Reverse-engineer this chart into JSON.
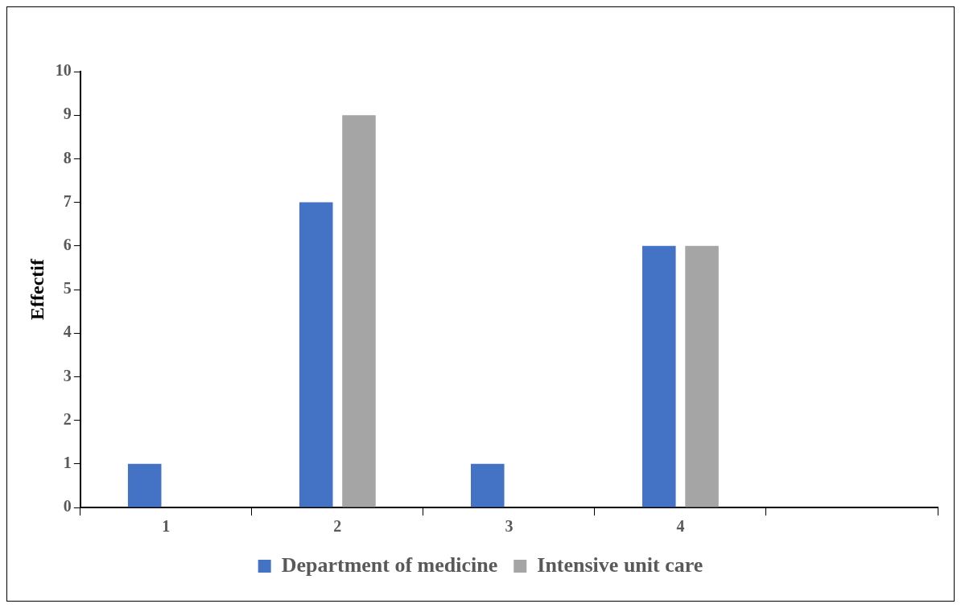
{
  "chart_data": {
    "type": "bar",
    "ylabel": "Effectif",
    "categories": [
      "1",
      "2",
      "3",
      "4",
      null
    ],
    "series": [
      {
        "name": "Department of medicine",
        "color": "#4472c4",
        "values": [
          1,
          7,
          1,
          6,
          null
        ]
      },
      {
        "name": "Intensive unit care",
        "color": "#a5a5a5",
        "values": [
          0,
          9,
          0,
          6,
          null
        ]
      }
    ],
    "ylim": [
      0,
      10
    ],
    "yticks": [
      0,
      1,
      2,
      3,
      4,
      5,
      6,
      7,
      8,
      9,
      10
    ],
    "grid": false,
    "legend": "bottom"
  }
}
